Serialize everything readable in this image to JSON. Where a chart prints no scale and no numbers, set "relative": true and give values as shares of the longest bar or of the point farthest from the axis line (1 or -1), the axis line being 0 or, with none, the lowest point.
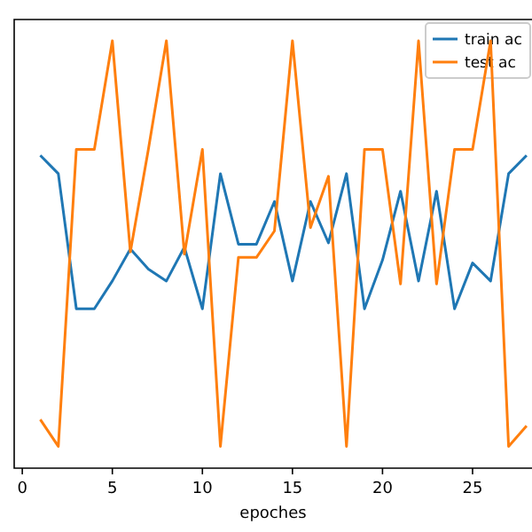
{
  "chart_data": {
    "type": "line",
    "relative": true,
    "xlabel": "epoches",
    "xlim": [
      -0.45,
      28.3
    ],
    "xticks": [
      0,
      5,
      10,
      15,
      20,
      25
    ],
    "legend": "top right",
    "x": [
      1,
      2,
      3,
      4,
      5,
      6,
      7,
      8,
      9,
      10,
      11,
      12,
      13,
      14,
      15,
      16,
      17,
      18,
      19,
      20,
      21,
      22,
      23,
      24,
      25,
      26,
      27,
      28
    ],
    "series": [
      {
        "name": "train ac",
        "color": "#1f77b4",
        "values": [
          0.732,
          0.689,
          0.373,
          0.373,
          0.438,
          0.513,
          0.466,
          0.438,
          0.517,
          0.373,
          0.689,
          0.524,
          0.524,
          0.624,
          0.438,
          0.624,
          0.527,
          0.689,
          0.373,
          0.487,
          0.648,
          0.438,
          0.648,
          0.373,
          0.48,
          0.438,
          0.689,
          0.732
        ]
      },
      {
        "name": "test ac",
        "color": "#ff7f0e",
        "values": [
          0.114,
          0.051,
          0.746,
          0.746,
          1,
          0.506,
          0.746,
          1,
          0.501,
          0.746,
          0.051,
          0.493,
          0.493,
          0.555,
          1,
          0.563,
          0.683,
          0.051,
          0.746,
          0.746,
          0.431,
          1,
          0.431,
          0.746,
          0.746,
          1,
          0.051,
          0.099
        ]
      }
    ]
  }
}
